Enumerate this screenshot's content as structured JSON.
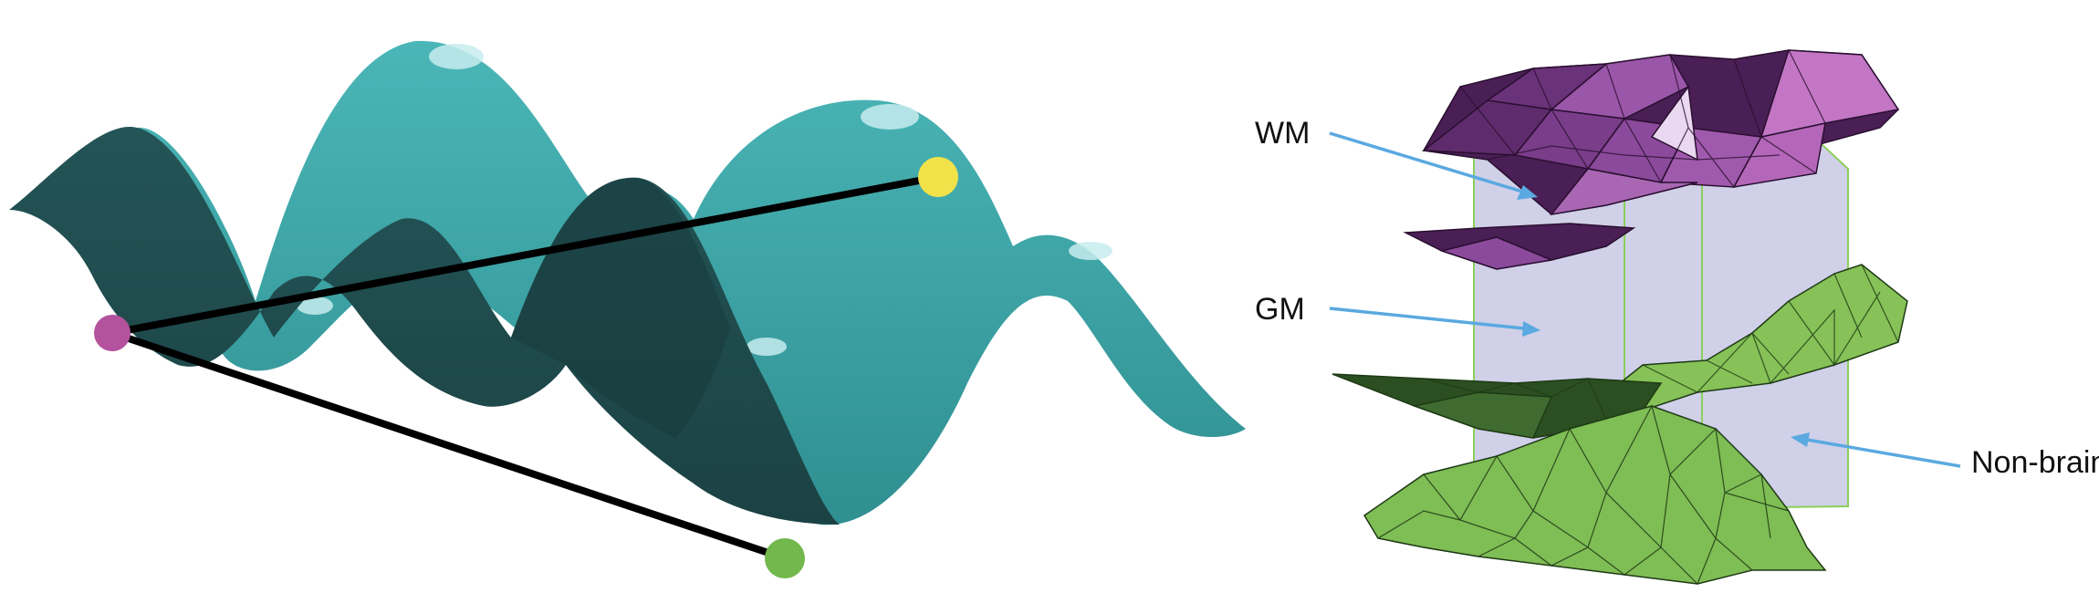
{
  "labels": {
    "wm": "WM",
    "gm": "GM",
    "non_brain": "Non-brain"
  },
  "colors": {
    "surface_front": "#1f4a4c",
    "surface_back": "#43a9aa",
    "highlight": "#bfe8ea",
    "line": "#000000",
    "point_magenta": "#b4529e",
    "point_yellow": "#f2e24a",
    "point_green": "#72b84c",
    "wm_dark": "#4a1f55",
    "wm_mid": "#8b4a9b",
    "wm_light": "#b467b8",
    "gm_box": "#c9c9e6",
    "nonbrain_light": "#86c257",
    "nonbrain_dark": "#2c4f22",
    "arrow": "#5aa9e0"
  }
}
